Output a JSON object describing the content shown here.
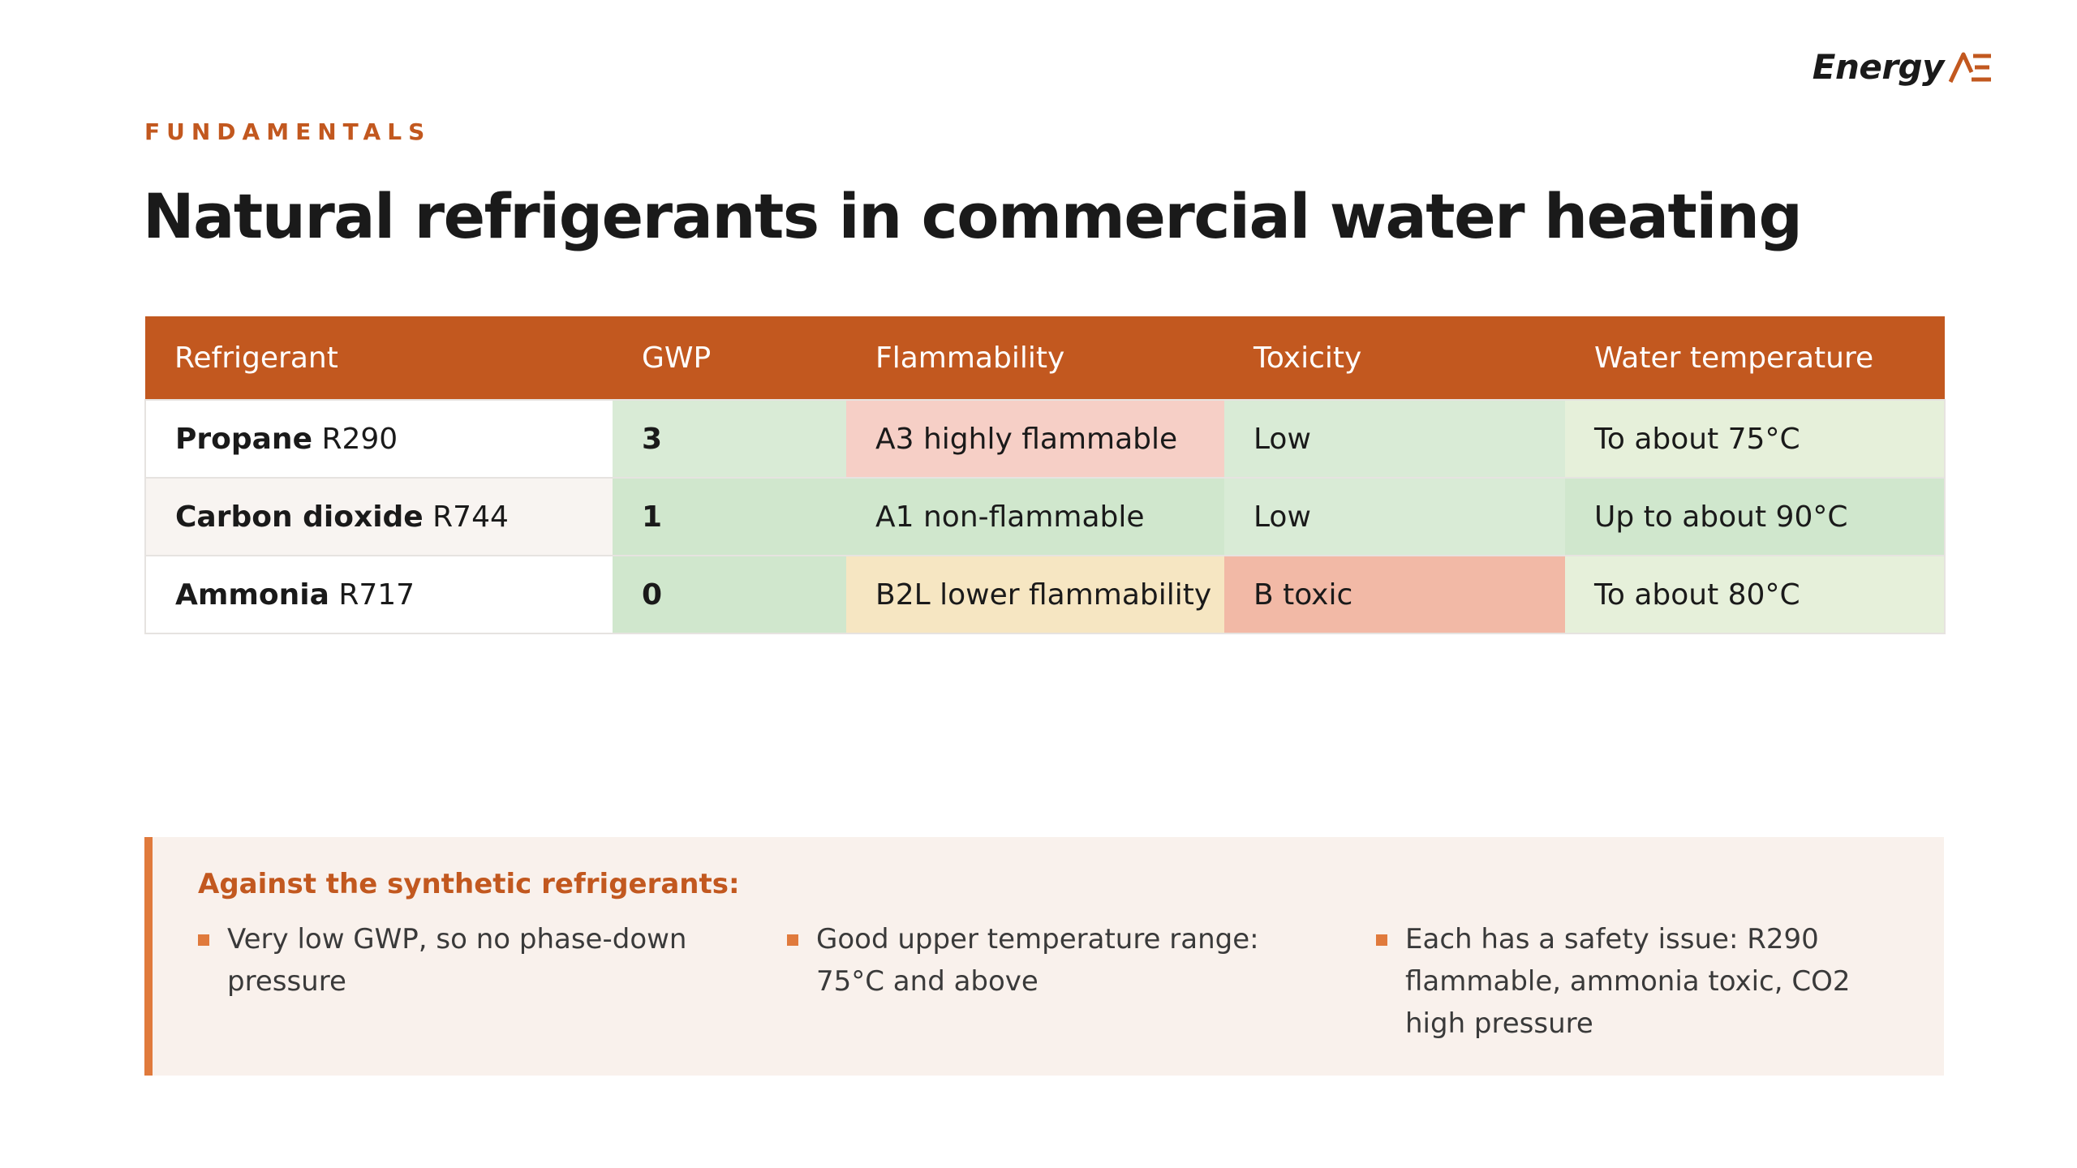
{
  "brand": {
    "name": "Energy",
    "mark": "AE",
    "accent": "#c2581f"
  },
  "eyebrow": "FUNDAMENTALS",
  "title": "Natural refrigerants in commercial water heating",
  "table": {
    "headers": [
      "Refrigerant",
      "GWP",
      "Flammability",
      "Toxicity",
      "Water temperature"
    ],
    "rows": [
      {
        "name": "Propane",
        "code": "R290",
        "gwp": "3",
        "flammability": "A3 highly flammable",
        "toxicity": "Low",
        "water_temperature": "To about 75°C"
      },
      {
        "name": "Carbon dioxide",
        "code": "R744",
        "gwp": "1",
        "flammability": "A1 non-flammable",
        "toxicity": "Low",
        "water_temperature": "Up to about 90°C"
      },
      {
        "name": "Ammonia",
        "code": "R717",
        "gwp": "0",
        "flammability": "B2L lower flammability",
        "toxicity": "B toxic",
        "water_temperature": "To about 80°C"
      }
    ]
  },
  "callout": {
    "heading": "Against the synthetic refrigerants:",
    "bullets": [
      "Very low GWP, so no phase-down pressure",
      "Good upper temperature range: 75°C and above",
      "Each has a safety issue: R290 flammable, ammonia toxic, CO2 high pressure"
    ],
    "accent": "#e07a3c"
  }
}
